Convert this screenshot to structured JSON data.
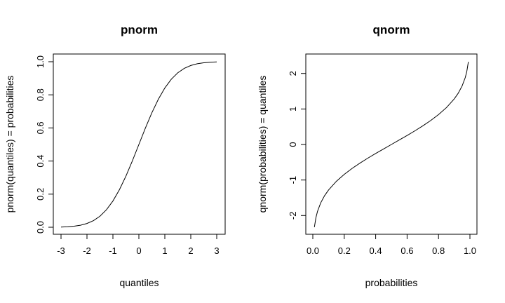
{
  "chart_data": [
    {
      "type": "line",
      "title": "pnorm",
      "xlabel": "quantiles",
      "ylabel": "pnorm(quantiles) = probabilities",
      "xlim": [
        -3,
        3
      ],
      "ylim": [
        0,
        1
      ],
      "xticks": [
        "-3",
        "-2",
        "-1",
        "0",
        "1",
        "2",
        "3"
      ],
      "yticks": [
        "0.0",
        "0.2",
        "0.4",
        "0.6",
        "0.8",
        "1.0"
      ],
      "grid": false,
      "series": [
        {
          "x": [
            -3.0,
            -2.75,
            -2.5,
            -2.25,
            -2.0,
            -1.75,
            -1.5,
            -1.25,
            -1.0,
            -0.75,
            -0.5,
            -0.25,
            0.0,
            0.25,
            0.5,
            0.75,
            1.0,
            1.25,
            1.5,
            1.75,
            2.0,
            2.25,
            2.5,
            2.75,
            3.0
          ],
          "y": [
            0.0013,
            0.003,
            0.0062,
            0.0122,
            0.0228,
            0.0401,
            0.0668,
            0.1056,
            0.1587,
            0.2266,
            0.3085,
            0.4013,
            0.5,
            0.5987,
            0.6915,
            0.7734,
            0.8413,
            0.8944,
            0.9332,
            0.9599,
            0.9772,
            0.9878,
            0.9938,
            0.997,
            0.9987
          ]
        }
      ]
    },
    {
      "type": "line",
      "title": "qnorm",
      "xlabel": "probabilities",
      "ylabel": "qnorm(probabilities) = quantiles",
      "xlim": [
        0,
        1
      ],
      "ylim": [
        -2.33,
        2.33
      ],
      "xticks": [
        "0.0",
        "0.2",
        "0.4",
        "0.6",
        "0.8",
        "1.0"
      ],
      "yticks": [
        "-2",
        "-1",
        "0",
        "1",
        "2"
      ],
      "grid": false,
      "series": [
        {
          "x": [
            0.01,
            0.02,
            0.03,
            0.05,
            0.075,
            0.1,
            0.15,
            0.2,
            0.25,
            0.3,
            0.35,
            0.4,
            0.45,
            0.5,
            0.55,
            0.6,
            0.65,
            0.7,
            0.75,
            0.8,
            0.85,
            0.9,
            0.925,
            0.95,
            0.97,
            0.98,
            0.99
          ],
          "y": [
            -2.326,
            -2.054,
            -1.881,
            -1.645,
            -1.44,
            -1.282,
            -1.036,
            -0.842,
            -0.674,
            -0.524,
            -0.385,
            -0.253,
            -0.126,
            0.0,
            0.126,
            0.253,
            0.385,
            0.524,
            0.674,
            0.842,
            1.036,
            1.282,
            1.44,
            1.645,
            1.881,
            2.054,
            2.326
          ]
        }
      ]
    }
  ]
}
